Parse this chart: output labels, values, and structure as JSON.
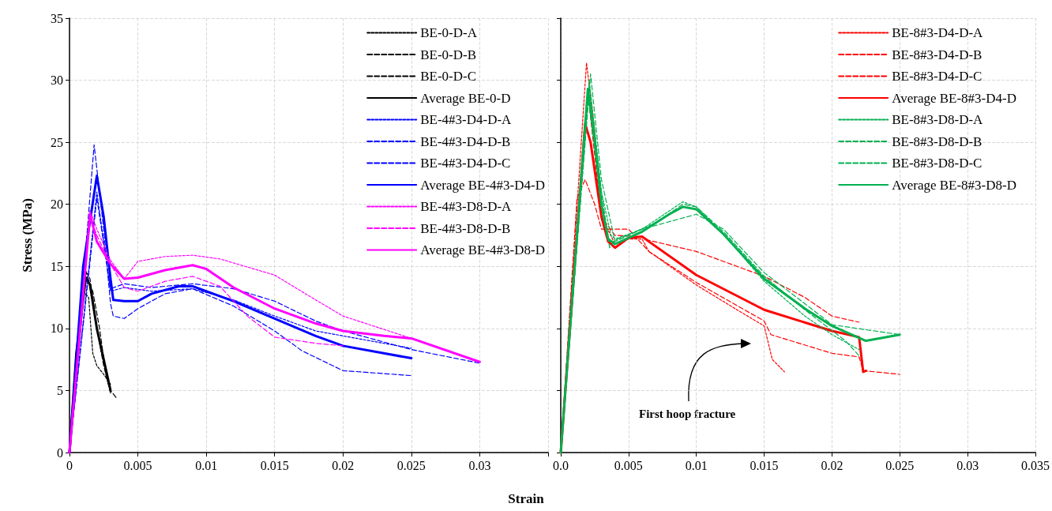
{
  "chart_data": [
    {
      "type": "line",
      "ylabel": "Stress (MPa)",
      "xlabel": "Strain",
      "xlim": [
        0,
        0.035
      ],
      "ylim": [
        0,
        35
      ],
      "xticks": [
        0,
        0.005,
        0.01,
        0.015,
        0.02,
        0.025,
        0.03,
        {
          "value": 0.035,
          "label": null
        }
      ],
      "yticks": [
        0,
        5,
        10,
        15,
        20,
        25,
        30,
        35
      ],
      "grid": true,
      "legend": "top right",
      "marker": "none",
      "series": [
        {
          "name": "BE-0-D-A",
          "color": "#000000",
          "line_style": "dotted",
          "x": [
            0,
            0.001,
            0.0014,
            0.0017,
            0.002,
            0.0025,
            0.003
          ],
          "values": [
            0,
            13,
            12.5,
            8,
            7,
            6.3,
            5.5
          ]
        },
        {
          "name": "BE-0-D-B",
          "color": "#000000",
          "line_style": "dashed",
          "x": [
            0,
            0.0012,
            0.0017,
            0.0022,
            0.0027,
            0.003,
            0.0035
          ],
          "values": [
            0,
            14.5,
            13,
            10,
            6,
            5,
            4.3
          ]
        },
        {
          "name": "BE-0-D-C",
          "color": "#000000",
          "line_style": "dashed",
          "x": [
            0,
            0.001,
            0.0015,
            0.002,
            0.0025,
            0.003
          ],
          "values": [
            0,
            15,
            14,
            10,
            7,
            4.8
          ]
        },
        {
          "name": "Average BE-0-D",
          "color": "#000000",
          "line_style": "solid",
          "x": [
            0,
            0.0005,
            0.0012,
            0.0015,
            0.002,
            0.0025,
            0.003
          ],
          "values": [
            0,
            8,
            14.1,
            13.5,
            10,
            7.5,
            5
          ]
        },
        {
          "name": "BE-4#3-D4-D-A",
          "color": "#0000ff",
          "line_style": "dotted",
          "x": [
            0,
            0.002,
            0.003,
            0.004,
            0.006,
            0.009,
            0.012,
            0.015,
            0.018,
            0.021,
            0.025
          ],
          "values": [
            0,
            21,
            13,
            13.3,
            13,
            13.2,
            12.3,
            11,
            9.8,
            9.2,
            8.4
          ]
        },
        {
          "name": "BE-4#3-D4-D-B",
          "color": "#0000ff",
          "line_style": "dashed",
          "x": [
            0,
            0.0018,
            0.0025,
            0.003,
            0.0032,
            0.004,
            0.005,
            0.007,
            0.009,
            0.012,
            0.015,
            0.017,
            0.02,
            0.025
          ],
          "values": [
            0,
            24.8,
            18,
            12,
            11,
            10.8,
            11.6,
            12.8,
            13.2,
            11.8,
            9.8,
            8.2,
            6.6,
            6.2
          ]
        },
        {
          "name": "BE-4#3-D4-D-C",
          "color": "#0000ff",
          "line_style": "dashed",
          "x": [
            0,
            0.002,
            0.003,
            0.004,
            0.006,
            0.009,
            0.012,
            0.015,
            0.018,
            0.02,
            0.025,
            0.03
          ],
          "values": [
            0,
            20.5,
            13.2,
            13.6,
            13.3,
            13.6,
            13.2,
            12.2,
            10.6,
            9.8,
            8.3,
            7.2
          ]
        },
        {
          "name": "Average BE-4#3-D4-D",
          "color": "#0000ff",
          "line_style": "solid",
          "x": [
            0,
            0.001,
            0.002,
            0.0025,
            0.003,
            0.0032,
            0.004,
            0.005,
            0.006,
            0.008,
            0.009,
            0.012,
            0.015,
            0.018,
            0.02,
            0.025
          ],
          "values": [
            0,
            15,
            22.3,
            19,
            14,
            12.3,
            12.2,
            12.2,
            12.8,
            13.4,
            13.4,
            12.2,
            10.8,
            9.4,
            8.6,
            7.6
          ]
        },
        {
          "name": "BE-4#3-D8-D-A",
          "color": "#ff00ff",
          "line_style": "dotted",
          "x": [
            0,
            0.0015,
            0.002,
            0.003,
            0.004,
            0.005,
            0.007,
            0.009,
            0.011,
            0.015,
            0.018,
            0.02,
            0.025
          ],
          "values": [
            0,
            19.5,
            18,
            15.5,
            14,
            15.4,
            15.8,
            15.9,
            15.6,
            14.3,
            12.3,
            11,
            9.2
          ]
        },
        {
          "name": "BE-4#3-D8-D-B",
          "color": "#ff00ff",
          "line_style": "dashed",
          "x": [
            0,
            0.0015,
            0.002,
            0.003,
            0.004,
            0.005,
            0.007,
            0.009,
            0.011,
            0.013,
            0.015,
            0.018,
            0.02
          ],
          "values": [
            0,
            19,
            17.5,
            15.2,
            13.3,
            13,
            13.8,
            14.2,
            13.4,
            11,
            9.3,
            8.8,
            8.6
          ]
        },
        {
          "name": "Average BE-4#3-D8-D",
          "color": "#ff00ff",
          "line_style": "solid",
          "x": [
            0,
            0.0015,
            0.002,
            0.003,
            0.004,
            0.005,
            0.007,
            0.009,
            0.01,
            0.012,
            0.015,
            0.018,
            0.02,
            0.023,
            0.025,
            0.03
          ],
          "values": [
            0,
            19.2,
            17,
            15.2,
            14,
            14.1,
            14.7,
            15.1,
            14.8,
            13.3,
            11.6,
            10.4,
            9.8,
            9.4,
            9.2,
            7.3
          ]
        }
      ]
    },
    {
      "type": "line",
      "xlim": [
        0,
        0.035
      ],
      "ylim": [
        0,
        35
      ],
      "tick_labels": "x",
      "xticks": [
        {
          "value": 0,
          "label": "0.0"
        },
        0.005,
        0.01,
        0.015,
        0.02,
        0.025,
        0.03,
        0.035
      ],
      "yticks": [
        0,
        5,
        10,
        15,
        20,
        25,
        30,
        35
      ],
      "grid": true,
      "legend": "top right",
      "marker": "none",
      "annotations": [
        "First hoop fracture"
      ],
      "series": [
        {
          "name": "BE-8#3-D4-D-A",
          "color": "#ff0000",
          "line_style": "dotted",
          "x": [
            0,
            0.0019,
            0.0025,
            0.003,
            0.004,
            0.005,
            0.006,
            0.0065,
            0.01,
            0.013,
            0.015,
            0.0156,
            0.0165
          ],
          "values": [
            0,
            31.4,
            26,
            19,
            16.8,
            17.2,
            17.2,
            16.2,
            13.5,
            11.5,
            10.2,
            7.5,
            6.5
          ]
        },
        {
          "name": "BE-8#3-D4-D-B",
          "color": "#ff0000",
          "line_style": "dashed",
          "x": [
            0,
            0.0012,
            0.0018,
            0.0025,
            0.003,
            0.004,
            0.005,
            0.0065,
            0.01,
            0.015,
            0.0155,
            0.02,
            0.022,
            0.0223,
            0.025
          ],
          "values": [
            0,
            20.5,
            22,
            20,
            18,
            18,
            18,
            16.2,
            13.7,
            10.6,
            9.5,
            8,
            7.7,
            6.6,
            6.3
          ]
        },
        {
          "name": "BE-8#3-D4-D-C",
          "color": "#ff0000",
          "line_style": "dashed",
          "x": [
            0,
            0.002,
            0.003,
            0.004,
            0.006,
            0.0065,
            0.01,
            0.015,
            0.018,
            0.02,
            0.022
          ],
          "values": [
            0,
            29,
            19,
            17.5,
            17.4,
            17.1,
            16.2,
            14.2,
            12.5,
            11,
            10.5
          ]
        },
        {
          "name": "Average BE-8#3-D4-D",
          "color": "#ff0000",
          "line_style": "solid",
          "x": [
            0,
            0.0018,
            0.0022,
            0.003,
            0.0035,
            0.004,
            0.005,
            0.006,
            0.0065,
            0.01,
            0.015,
            0.02,
            0.022,
            0.0223,
            0.0225
          ],
          "values": [
            0,
            26.5,
            25,
            19,
            17,
            16.5,
            17.3,
            17.4,
            17,
            14.3,
            11.5,
            9.8,
            9.3,
            6.5,
            6.6
          ]
        },
        {
          "name": "BE-8#3-D8-D-A",
          "color": "#00b050",
          "line_style": "dotted",
          "x": [
            0,
            0.0021,
            0.003,
            0.0037,
            0.004,
            0.006,
            0.009,
            0.01,
            0.012,
            0.015,
            0.018,
            0.02,
            0.022
          ],
          "values": [
            0,
            30,
            21,
            17.5,
            17.2,
            18,
            20.2,
            19.8,
            17.6,
            13.8,
            11,
            9.5,
            8.3
          ]
        },
        {
          "name": "BE-8#3-D8-D-B",
          "color": "#00b050",
          "line_style": "dashed",
          "x": [
            0,
            0.0021,
            0.003,
            0.0036,
            0.004,
            0.007,
            0.009,
            0.01,
            0.012,
            0.015,
            0.018,
            0.021,
            0.022
          ],
          "values": [
            0,
            29.5,
            21,
            16.5,
            17.1,
            18.5,
            20,
            19.8,
            17.8,
            14.2,
            11.5,
            9,
            7.8
          ]
        },
        {
          "name": "BE-8#3-D8-D-C",
          "color": "#00b050",
          "line_style": "dashed",
          "x": [
            0,
            0.0022,
            0.003,
            0.004,
            0.006,
            0.01,
            0.012,
            0.015,
            0.018,
            0.02,
            0.025
          ],
          "values": [
            0,
            30.5,
            22,
            17,
            18,
            19.2,
            18,
            14.5,
            12,
            10.3,
            9.5
          ]
        },
        {
          "name": "Average BE-8#3-D8-D",
          "color": "#00b050",
          "line_style": "solid",
          "x": [
            0,
            0.002,
            0.0025,
            0.003,
            0.0035,
            0.004,
            0.006,
            0.008,
            0.009,
            0.01,
            0.012,
            0.015,
            0.018,
            0.02,
            0.0225,
            0.025
          ],
          "values": [
            0,
            29.3,
            25,
            20,
            17.2,
            16.8,
            17.8,
            19.2,
            19.8,
            19.6,
            17.6,
            14,
            11.6,
            10.2,
            9,
            9.5
          ]
        }
      ]
    }
  ]
}
